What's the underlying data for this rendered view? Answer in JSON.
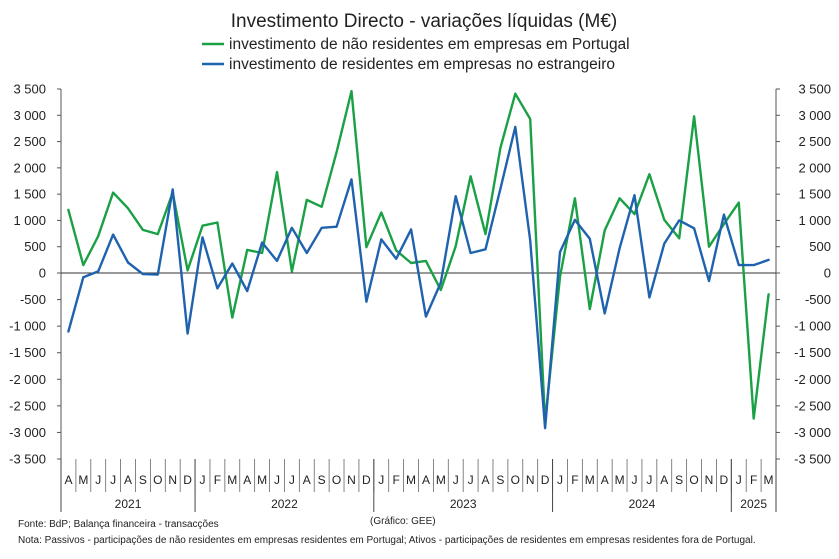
{
  "chart_data": {
    "type": "line",
    "title": "Investimento Directo - variações líquidas (M€)",
    "series": [
      {
        "name": "investimento de não residentes em empresas em Portugal",
        "color": "#1aa045",
        "values": [
          1200,
          150,
          700,
          1530,
          1230,
          820,
          740,
          1530,
          50,
          900,
          960,
          -840,
          440,
          380,
          1920,
          30,
          1390,
          1260,
          2300,
          3460,
          490,
          1150,
          430,
          190,
          230,
          -320,
          510,
          1840,
          740,
          2380,
          3410,
          2930,
          -2800,
          -70,
          1420,
          -680,
          810,
          1420,
          1120,
          1880,
          1010,
          660,
          2980,
          500,
          930,
          1340,
          -2740,
          -400
        ]
      },
      {
        "name": "investimento de residentes em empresas no estrangeiro",
        "color": "#1f62ae",
        "values": [
          -1100,
          -80,
          30,
          730,
          200,
          -20,
          -30,
          1590,
          -1140,
          680,
          -290,
          180,
          -340,
          580,
          230,
          860,
          380,
          860,
          880,
          1780,
          -540,
          640,
          270,
          830,
          -820,
          -180,
          1460,
          380,
          450,
          1600,
          2780,
          620,
          -2920,
          400,
          1010,
          650,
          -760,
          470,
          1480,
          -460,
          560,
          1000,
          850,
          -150,
          1110,
          150,
          150,
          250
        ]
      }
    ],
    "months": [
      "A",
      "M",
      "J",
      "J",
      "A",
      "S",
      "O",
      "N",
      "D",
      "J",
      "F",
      "M",
      "A",
      "M",
      "J",
      "J",
      "A",
      "S",
      "O",
      "N",
      "D",
      "J",
      "F",
      "M",
      "A",
      "M",
      "J",
      "J",
      "A",
      "S",
      "O",
      "N",
      "D",
      "J",
      "F",
      "M",
      "A",
      "M",
      "J",
      "J",
      "A",
      "S",
      "O",
      "N",
      "D",
      "J",
      "F",
      "M"
    ],
    "years": [
      {
        "label": "2021",
        "start": 0,
        "count": 9
      },
      {
        "label": "2022",
        "start": 9,
        "count": 12
      },
      {
        "label": "2023",
        "start": 21,
        "count": 12
      },
      {
        "label": "2024",
        "start": 33,
        "count": 12
      },
      {
        "label": "2025",
        "start": 45,
        "count": 3
      }
    ],
    "ylim": [
      -3500,
      3500
    ],
    "yticks": [
      3500,
      3000,
      2500,
      2000,
      1500,
      1000,
      500,
      0,
      -500,
      -1000,
      -1500,
      -2000,
      -2500,
      -3000,
      -3500
    ],
    "ytick_labels": [
      "3 500",
      "3 000",
      "2 500",
      "2 000",
      "1 500",
      "1 000",
      "500",
      "0",
      "-500",
      "-1 000",
      "-1 500",
      "-2 000",
      "-2 500",
      "-3 000",
      "-3 500"
    ],
    "grid": false,
    "legend_position": "top-center"
  },
  "footer": {
    "source": "Fonte: BdP; Balança financeira - transacções",
    "credit": "(Gráfico: GEE)",
    "note": "Nota: Passivos - participações de não residentes em empresas residentes em Portugal; Ativos - participações de residentes em empresas residentes fora de Portugal."
  }
}
